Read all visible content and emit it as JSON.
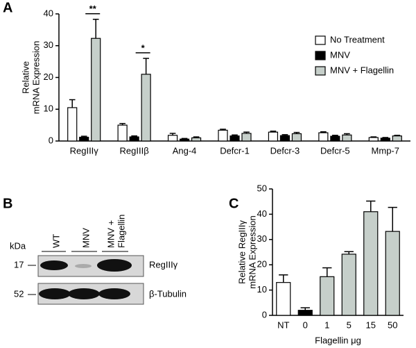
{
  "chart_data": [
    {
      "type": "bar",
      "panel": "A",
      "ylabel": [
        "Relative",
        "mRNA Expression"
      ],
      "categories": [
        "RegIIIγ",
        "RegIIIβ",
        "Ang-4",
        "Defcr-1",
        "Defcr-3",
        "Defcr-5",
        "Mmp-7"
      ],
      "series": [
        {
          "name": "No Treatment",
          "color": "#ffffff",
          "values": [
            10.5,
            5.0,
            1.8,
            3.4,
            2.8,
            2.6,
            1.1
          ],
          "errors": [
            2.5,
            0.5,
            0.6,
            0.3,
            0.3,
            0.3,
            0.2
          ]
        },
        {
          "name": "MNV",
          "color": "#000000",
          "values": [
            1.2,
            1.3,
            0.6,
            1.6,
            1.7,
            1.5,
            0.9
          ],
          "errors": [
            0.3,
            0.3,
            0.2,
            0.3,
            0.3,
            0.3,
            0.2
          ]
        },
        {
          "name": "MNV + Flagellin",
          "color": "#c6cfca",
          "values": [
            32.3,
            21.0,
            1.0,
            2.4,
            2.3,
            1.9,
            1.6
          ],
          "errors": [
            6.0,
            5.0,
            0.3,
            0.4,
            0.4,
            0.4,
            0.2
          ]
        }
      ],
      "annotations": [
        "**",
        "*"
      ],
      "ylim": [
        0,
        40
      ],
      "yticks": [
        0,
        10,
        20,
        30,
        40
      ],
      "legend": "upper-right"
    },
    {
      "type": "bar",
      "panel": "C",
      "ylabel": [
        "Relative RegIIIγ",
        "mRNA Expression"
      ],
      "xlabel": "Flagellin μg",
      "categories": [
        "NT",
        "0",
        "1",
        "5",
        "15",
        "50"
      ],
      "values": [
        13,
        2,
        15.3,
        24.2,
        41,
        33.2
      ],
      "errors": [
        3,
        1,
        3.5,
        1,
        4.2,
        9.5
      ],
      "colors": [
        "#ffffff",
        "#000000",
        "#c6cfca",
        "#c6cfca",
        "#c6cfca",
        "#c6cfca"
      ],
      "ylim": [
        0,
        50
      ],
      "yticks": [
        0,
        10,
        20,
        30,
        40,
        50
      ]
    }
  ],
  "blot": {
    "panel": "B",
    "lanes": [
      "WT",
      "MNV",
      "MNV +",
      "Flagellin"
    ],
    "unit": "kDa",
    "sizes": [
      "17",
      "52"
    ],
    "bands": [
      "RegIIIγ",
      "β-Tubulin"
    ]
  }
}
